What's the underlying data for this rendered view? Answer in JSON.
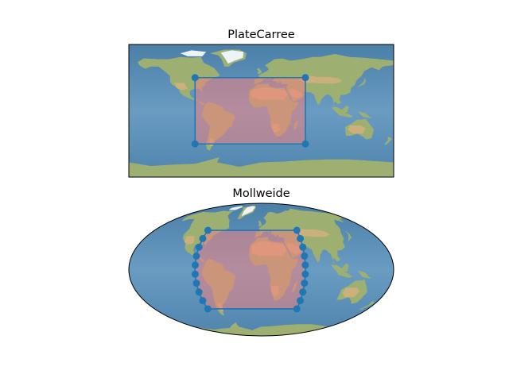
{
  "figure": {
    "panels": [
      {
        "title": "PlateCarree",
        "projection": "PlateCarree",
        "region_lon": [
          -90,
          60
        ],
        "region_lat": [
          -45,
          45
        ]
      },
      {
        "title": "Mollweide",
        "projection": "Mollweide",
        "region_lon": [
          -90,
          60
        ],
        "region_lat": [
          -45,
          45
        ]
      }
    ],
    "colors": {
      "ocean": "#5e92ba",
      "land": "#9db071",
      "desert": "#d1b07c",
      "ice": "#eef3f7",
      "outline": "#1f77b4",
      "fill_overlay": "#f08080"
    }
  }
}
